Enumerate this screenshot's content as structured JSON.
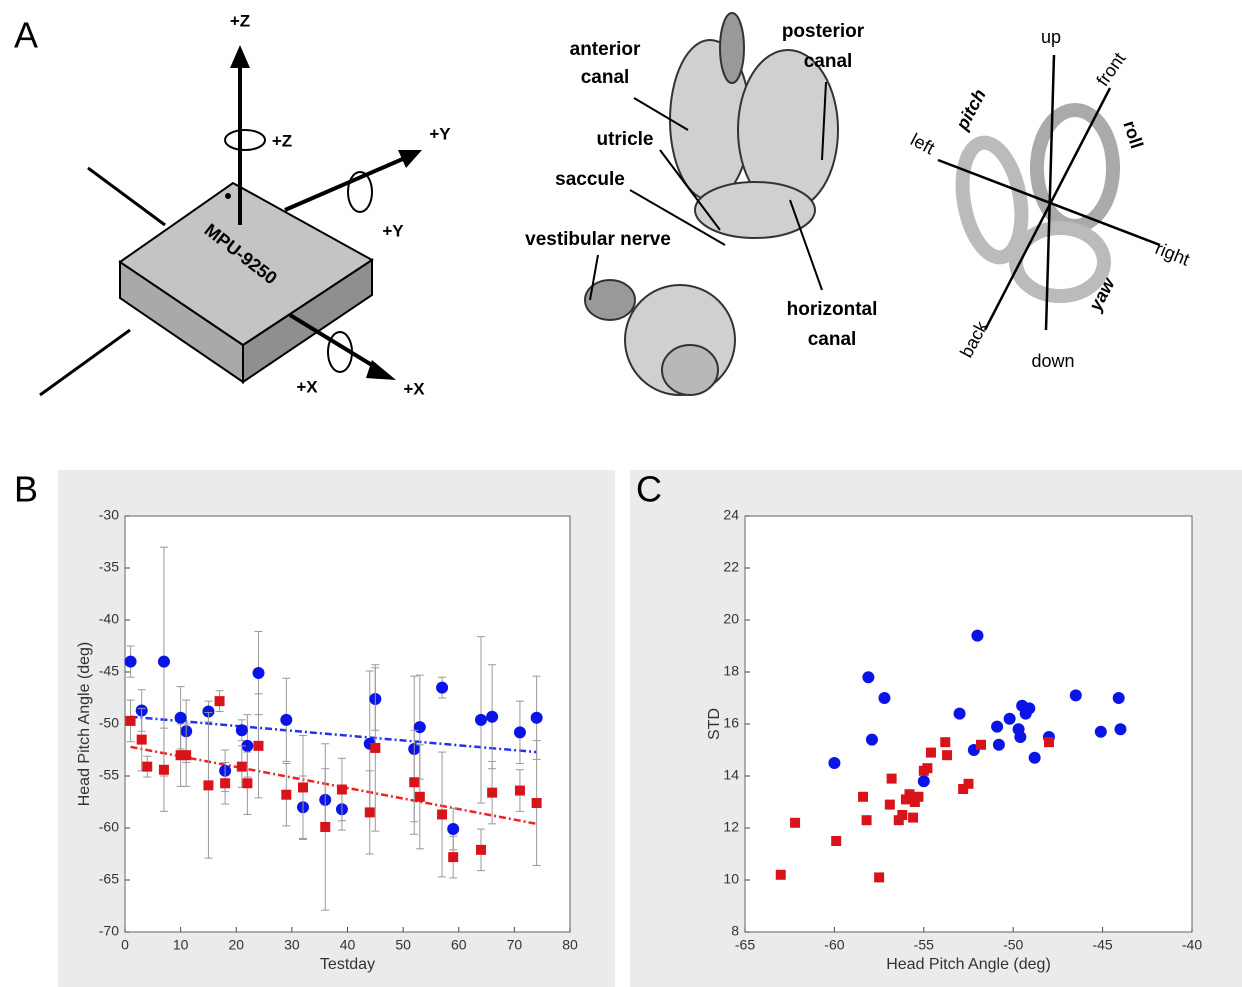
{
  "panel_a": {
    "label": "A",
    "sensor": {
      "chip": "MPU-9250",
      "z_axis": "+Z",
      "z_rot": "+Z",
      "y_axis": "+Y",
      "y_rot": "+Y",
      "x_rot": "+X",
      "x_axis": "+X"
    },
    "ear": {
      "anterior_canal": [
        "anterior",
        "canal"
      ],
      "posterior_canal": [
        "posterior",
        "canal"
      ],
      "utricle": "utricle",
      "saccule": "saccule",
      "vestibular_nerve": "vestibular nerve",
      "horizontal_canal": [
        "horizontal",
        "canal"
      ]
    },
    "orientation": {
      "up": "up",
      "front": "front",
      "pitch": "pitch",
      "roll": "roll",
      "left": "left",
      "right": "right",
      "back": "back",
      "down": "down",
      "yaw": "yaw"
    }
  },
  "chart_data": [
    {
      "type": "scatter",
      "panel_label": "B",
      "x_label": "Testday",
      "y_label": "Head Pitch Angle (deg)",
      "xlim": [
        0,
        80
      ],
      "xticks": [
        0,
        10,
        20,
        30,
        40,
        50,
        60,
        70,
        80
      ],
      "ylim": [
        -70,
        -30
      ],
      "yticks": [
        -70,
        -65,
        -60,
        -55,
        -50,
        -45,
        -40,
        -35,
        -30
      ],
      "series": [
        {
          "color": "#0a14e6",
          "marker": "circle",
          "x": [
            1,
            3,
            7,
            10,
            11,
            15,
            18,
            21,
            22,
            24,
            29,
            32,
            36,
            39,
            44,
            45,
            52,
            53,
            57,
            59,
            64,
            66,
            71,
            74
          ],
          "values": [
            -44,
            -48.7,
            -44,
            -49.4,
            -50.7,
            -48.8,
            -54.5,
            -50.6,
            -52.1,
            -45.1,
            -49.6,
            -58,
            -57.3,
            -58.2,
            -51.9,
            -47.6,
            -52.4,
            -50.3,
            -46.5,
            -60.1,
            -49.6,
            -49.3,
            -50.8,
            -49.4
          ],
          "errors": [
            1.5,
            2,
            11,
            3,
            3,
            1,
            2,
            1,
            3,
            4,
            4,
            3,
            3,
            2,
            7,
            3,
            7,
            5,
            1,
            2,
            8,
            5,
            3,
            4
          ]
        },
        {
          "color": "#d8141a",
          "marker": "square",
          "x": [
            1,
            3,
            4,
            7,
            10,
            11,
            15,
            17,
            18,
            21,
            22,
            24,
            29,
            32,
            36,
            39,
            44,
            45,
            52,
            53,
            57,
            59,
            64,
            66,
            71,
            74
          ],
          "values": [
            -49.7,
            -51.5,
            -54.1,
            -54.4,
            -53,
            -53,
            -55.9,
            -47.8,
            -55.7,
            -54.1,
            -55.7,
            -52.1,
            -56.8,
            -56.1,
            -59.9,
            -56.3,
            -58.5,
            -52.3,
            -55.6,
            -57,
            -58.7,
            -62.8,
            -62.1,
            -56.6,
            -56.4,
            -57.6
          ],
          "errors": [
            2,
            3,
            1,
            4,
            3,
            3,
            7,
            1,
            2,
            2,
            3,
            5,
            3,
            5,
            8,
            3,
            4,
            8,
            5,
            5,
            6,
            2,
            2,
            3,
            2,
            6
          ]
        }
      ],
      "trendlines": [
        {
          "color": "#2233ee",
          "x": [
            1,
            74
          ],
          "values": [
            -49.3,
            -52.7
          ]
        },
        {
          "color": "#ee2222",
          "x": [
            1,
            74
          ],
          "values": [
            -52.2,
            -59.6
          ]
        }
      ]
    },
    {
      "type": "scatter",
      "panel_label": "C",
      "x_label": "Head Pitch Angle (deg)",
      "y_label": "STD",
      "xlim": [
        -65,
        -40
      ],
      "xticks": [
        -65,
        -60,
        -55,
        -50,
        -45,
        -40
      ],
      "ylim": [
        8,
        24
      ],
      "yticks": [
        8,
        10,
        12,
        14,
        16,
        18,
        20,
        22,
        24
      ],
      "series": [
        {
          "color": "#0a14e6",
          "marker": "circle",
          "x": [
            -60,
            -58.1,
            -57.9,
            -57.2,
            -55,
            -53,
            -52.2,
            -52,
            -50.9,
            -50.8,
            -50.2,
            -49.7,
            -49.6,
            -49.5,
            -49.3,
            -49.1,
            -48.8,
            -48,
            -46.5,
            -45.1,
            -44.1,
            -44
          ],
          "values": [
            14.5,
            17.8,
            15.4,
            17,
            13.8,
            16.4,
            15,
            19.4,
            15.9,
            15.2,
            16.2,
            15.8,
            15.5,
            16.7,
            16.4,
            16.6,
            14.7,
            15.5,
            17.1,
            15.7,
            17,
            15.8
          ]
        },
        {
          "color": "#d8141a",
          "marker": "square",
          "x": [
            -63,
            -62.2,
            -59.9,
            -58.4,
            -58.2,
            -57.5,
            -56.9,
            -56.8,
            -56.4,
            -56.2,
            -56,
            -55.8,
            -55.6,
            -55.5,
            -55.3,
            -55,
            -54.8,
            -54.6,
            -53.8,
            -53.7,
            -52.8,
            -52.5,
            -51.8,
            -48
          ],
          "values": [
            10.2,
            12.2,
            11.5,
            13.2,
            12.3,
            10.1,
            12.9,
            13.9,
            12.3,
            12.5,
            13.1,
            13.3,
            12.4,
            13,
            13.2,
            14.2,
            14.3,
            14.9,
            15.3,
            14.8,
            13.5,
            13.7,
            15.2,
            15.3
          ]
        }
      ]
    }
  ]
}
